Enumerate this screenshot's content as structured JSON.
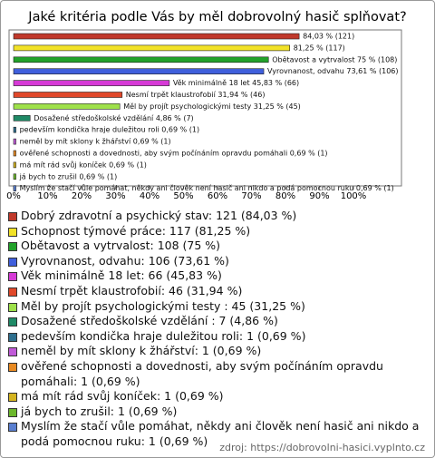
{
  "chart_data": {
    "type": "barh",
    "title": "Jaké kritéria podle Vás by měl dobrovolný hasič splňovat?",
    "categories": [
      "Dobrý zdravotní a psychický stav: 121 (84,03 %)",
      "Schopnost týmové práce: 117 (81,25 %)",
      "Obětavost a vytrvalost: 108 (75 %)",
      "Vyrovnanost, odvahu: 106 (73,61 %)",
      "Věk minimálně 18 let: 66 (45,83 %)",
      "Nesmí trpět klaustrofobií: 46 (31,94 %)",
      "Měl by projít psychologickými testy : 45 (31,25 %)",
      "Dosažené středoškolské vzdělání : 7 (4,86 %)",
      "pedevším kondička hraje duležitou roli: 1 (0,69 %)",
      "neměl by mít sklony k žhářství: 1 (0,69 %)",
      "ověřené schopnosti a dovednosti, aby svým počínáním opravdu pomáhali: 1 (0,69 %)",
      "má mít rád svůj koníček: 1 (0,69 %)",
      "já bych to zrušil: 1 (0,69 %)",
      "Myslím že stačí vůle pomáhat, někdy ani člověk není hasič ani nikdo a podá pomocnou ruku: 1 (0,69 %)"
    ],
    "values": [
      84.03,
      81.25,
      75,
      73.61,
      45.83,
      31.94,
      31.25,
      4.86,
      0.69,
      0.69,
      0.69,
      0.69,
      0.69,
      0.69
    ],
    "value_labels": [
      "84,03 % (121)",
      "81,25 % (117)",
      "Obětavost a vytrvalost 75 % (108)",
      "Vyrovnanost, odvahu 73,61 % (106)",
      "Věk minimálně 18 let 45,83 % (66)",
      "Nesmí trpět klaustrofobií 31,94 % (46)",
      "Měl by projít psychologickými testy  31,25 % (45)",
      "Dosažené středoškolské vzdělání  4,86 % (7)",
      "pedevším kondička hraje duležitou roli 0,69 % (1)",
      "neměl by mít sklony k žhářství 0,69 % (1)",
      "ověřené schopnosti a dovednosti, aby svým počínáním opravdu pomáhali 0,69 % (1)",
      "má mít rád svůj koníček 0,69 % (1)",
      "já bych to zrušil 0,69 % (1)",
      "Myslím že stačí vůle pomáhat, někdy ani člověk není hasič ani nikdo a podá pomocnou ruku 0,69 % (1)"
    ],
    "colors": [
      "#c0392b",
      "#f2e227",
      "#22a22a",
      "#3f5fdc",
      "#d63ad6",
      "#e0482a",
      "#9ee14a",
      "#1f8a66",
      "#2e6f8e",
      "#c05ad8",
      "#e88a22",
      "#d4b420",
      "#6cb82c",
      "#5a7fd0"
    ],
    "xlim": [
      0,
      115
    ],
    "xticks": [
      {
        "value": 0,
        "label": "0%"
      },
      {
        "value": 10,
        "label": "10%"
      },
      {
        "value": 20,
        "label": "20%"
      },
      {
        "value": 30,
        "label": "30%"
      },
      {
        "value": 40,
        "label": "40%"
      },
      {
        "value": 50,
        "label": "50%"
      },
      {
        "value": 60,
        "label": "60%"
      },
      {
        "value": 70,
        "label": "70%"
      },
      {
        "value": 80,
        "label": "80%"
      },
      {
        "value": 90,
        "label": "90%"
      },
      {
        "value": 100,
        "label": "100%"
      }
    ],
    "source": "zdroj: https://dobrovolni-hasici.vyplnto.cz"
  }
}
